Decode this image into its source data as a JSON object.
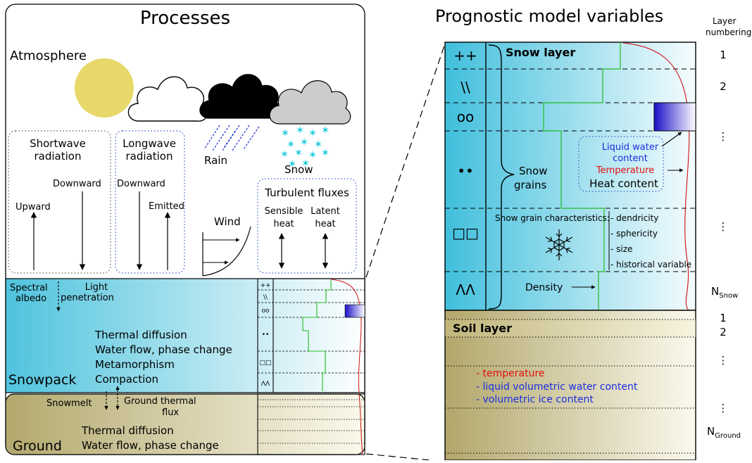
{
  "left": {
    "title": "Processes",
    "atmosphere": "Atmosphere",
    "shortwave": [
      "Shortwave",
      "radiation"
    ],
    "longwave": [
      "Longwave",
      "radiation"
    ],
    "upward": "Upward",
    "downward_sw": "Downward",
    "downward_lw": "Downward",
    "emitted": "Emitted",
    "rain": "Rain",
    "snow": "Snow",
    "wind": "Wind",
    "turbulent": "Turbulent fluxes",
    "sensible": [
      "Sensible",
      "heat"
    ],
    "latent": [
      "Latent",
      "heat"
    ],
    "spectral_albedo": [
      "Spectral",
      "albedo"
    ],
    "light_penetration": [
      "Light",
      "penetration"
    ],
    "snow_processes": [
      "Thermal diffusion",
      "Water flow, phase change",
      "Metamorphism",
      "Compaction"
    ],
    "snowpack": "Snowpack",
    "snowmelt": "Snowmelt",
    "ground_flux": [
      "Ground thermal",
      "flux"
    ],
    "ground_processes": [
      "Thermal diffusion",
      "Water flow, phase change"
    ],
    "ground": "Ground"
  },
  "right": {
    "title": "Prognostic model variables",
    "layer_numbering": [
      "Layer",
      "numbering"
    ],
    "snow_layer": "Snow layer",
    "grain_symbols": [
      "++",
      "\\\\",
      "oo",
      "••",
      "□□",
      "ΛΛ"
    ],
    "snow_grains": [
      "Snow",
      "grains"
    ],
    "liquid_water": [
      "Liquid water",
      "content"
    ],
    "temperature": "Temperature",
    "heat_content": "Heat content",
    "grain_char_title": "Snow grain characteristics:",
    "grain_chars": [
      "- dendricity",
      "- sphericity",
      "- size",
      "- historical variable"
    ],
    "density": "Density",
    "soil_layer": "Soil layer",
    "soil_vars": [
      {
        "text": "temperature",
        "color": "#e01010"
      },
      {
        "text": "liquid volumetric water content",
        "color": "#1a2ee0"
      },
      {
        "text": "volumetric ice content",
        "color": "#1a2ee0"
      }
    ],
    "numbers": [
      "1",
      "2",
      "⋮",
      "⋮",
      "1",
      "2",
      "⋮",
      "⋮"
    ],
    "n_snow": [
      "N",
      "Snow"
    ],
    "n_ground": [
      "N",
      "Ground"
    ]
  },
  "colors": {
    "snow_blue": "#4fc3dd",
    "soil_olive": "#b3a86d",
    "sun": "#e6d96a",
    "green_profile": "#22bb22",
    "red_profile": "#cc1111",
    "rain_blue": "#2233cc",
    "snowflake_cyan": "#22ccdd",
    "cloud_grey": "#cccccc",
    "dotted_blue": "#3355cc",
    "text_blue": "#1a2ee0",
    "text_red": "#e01010"
  }
}
